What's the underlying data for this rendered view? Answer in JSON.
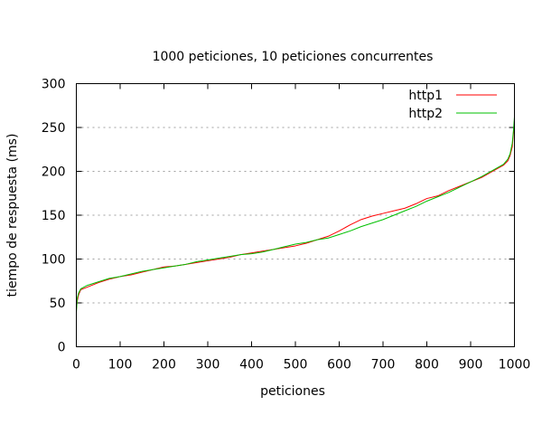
{
  "chart_data": {
    "type": "line",
    "title": "1000 peticiones, 10 peticiones concurrentes",
    "xlabel": "peticiones",
    "ylabel": "tiempo de respuesta (ms)",
    "xlim": [
      0,
      1000
    ],
    "ylim": [
      0,
      300
    ],
    "xticks": [
      0,
      100,
      200,
      300,
      400,
      500,
      600,
      700,
      800,
      900,
      1000
    ],
    "yticks": [
      0,
      50,
      100,
      150,
      200,
      250,
      300
    ],
    "ygrid": [
      50,
      100,
      150,
      200,
      250
    ],
    "legend_position": "top-right",
    "series": [
      {
        "name": "http1",
        "color": "#ff0000",
        "x": [
          0,
          2,
          5,
          10,
          25,
          50,
          75,
          100,
          125,
          150,
          175,
          200,
          225,
          250,
          275,
          300,
          325,
          350,
          375,
          400,
          425,
          450,
          475,
          500,
          525,
          550,
          575,
          600,
          625,
          650,
          675,
          700,
          725,
          750,
          775,
          800,
          825,
          850,
          875,
          900,
          925,
          950,
          975,
          985,
          990,
          995,
          998,
          1000
        ],
        "y": [
          42,
          52,
          59,
          65,
          68,
          73,
          77,
          80,
          82,
          85,
          88,
          91,
          92,
          94,
          96,
          98,
          100,
          102,
          105,
          107,
          109,
          111,
          113,
          115,
          118,
          122,
          126,
          132,
          139,
          145,
          149,
          152,
          155,
          158,
          163,
          169,
          172,
          178,
          183,
          188,
          193,
          200,
          207,
          212,
          218,
          228,
          245,
          258
        ]
      },
      {
        "name": "http2",
        "color": "#00c000",
        "x": [
          0,
          2,
          5,
          10,
          25,
          50,
          75,
          100,
          125,
          150,
          175,
          200,
          225,
          250,
          275,
          300,
          325,
          350,
          375,
          400,
          425,
          450,
          475,
          500,
          525,
          550,
          575,
          600,
          625,
          650,
          675,
          700,
          725,
          750,
          775,
          800,
          825,
          850,
          875,
          900,
          925,
          950,
          975,
          985,
          990,
          995,
          998,
          1000
        ],
        "y": [
          38,
          55,
          61,
          66,
          70,
          74,
          78,
          80,
          83,
          86,
          88,
          90,
          92,
          94,
          97,
          99,
          101,
          103,
          105,
          106,
          108,
          111,
          114,
          117,
          119,
          122,
          124,
          128,
          132,
          137,
          141,
          145,
          150,
          155,
          160,
          166,
          171,
          176,
          182,
          188,
          194,
          201,
          208,
          214,
          220,
          232,
          248,
          262
        ]
      }
    ]
  }
}
